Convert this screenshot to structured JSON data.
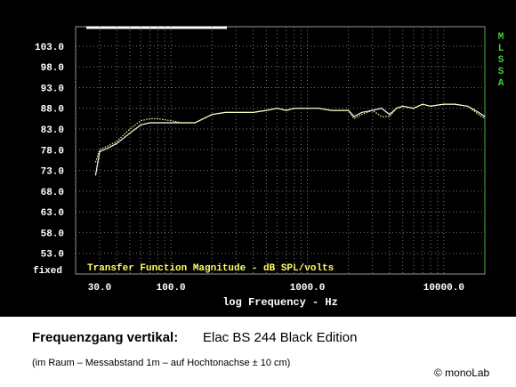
{
  "chart_data": {
    "type": "line",
    "x_label": "log Frequency - Hz",
    "y_note": "fixed",
    "plot_caption": "Transfer Function Magnitude - dB SPL/volts",
    "side_label": "MLSSA",
    "log_x": true,
    "grid": true,
    "xlim": [
      20,
      20000
    ],
    "ylim": [
      48,
      107.7
    ],
    "xticks": [
      {
        "value": 30,
        "label": "30.0"
      },
      {
        "value": 100,
        "label": "100.0"
      },
      {
        "value": 1000,
        "label": "1000.0"
      },
      {
        "value": 10000,
        "label": "10000.0"
      }
    ],
    "x_minor_ticks": [
      20,
      40,
      50,
      60,
      70,
      80,
      90,
      200,
      300,
      400,
      500,
      600,
      700,
      800,
      900,
      2000,
      3000,
      4000,
      5000,
      6000,
      7000,
      8000,
      9000,
      20000
    ],
    "yticks": [
      {
        "value": 53,
        "label": "53.0"
      },
      {
        "value": 58,
        "label": "58.0"
      },
      {
        "value": 63,
        "label": "63.0"
      },
      {
        "value": 68,
        "label": "68.0"
      },
      {
        "value": 73,
        "label": "73.0"
      },
      {
        "value": 78,
        "label": "78.0"
      },
      {
        "value": 83,
        "label": "83.0"
      },
      {
        "value": 88,
        "label": "88.0"
      },
      {
        "value": 93,
        "label": "93.0"
      },
      {
        "value": 98,
        "label": "98.0"
      },
      {
        "value": 103,
        "label": "103.0"
      }
    ],
    "x": [
      28,
      30,
      35,
      40,
      50,
      60,
      70,
      80,
      100,
      120,
      150,
      200,
      250,
      300,
      400,
      500,
      600,
      700,
      800,
      1000,
      1200,
      1500,
      2000,
      2200,
      2500,
      3000,
      3500,
      4000,
      4500,
      5000,
      6000,
      7000,
      8000,
      10000,
      12000,
      15000,
      18000,
      20000
    ],
    "series": [
      {
        "color": "#ffffff",
        "dash": false,
        "values": [
          71.8,
          77.5,
          78.5,
          79.5,
          82,
          84,
          84.5,
          84.5,
          84.5,
          84.5,
          84.5,
          86.5,
          87,
          87,
          87,
          87.5,
          88,
          87.5,
          88,
          88,
          88,
          87.5,
          87.5,
          86,
          87,
          87.5,
          88,
          86.5,
          88,
          88.5,
          88,
          89,
          88.5,
          89,
          89,
          88.5,
          87,
          86
        ]
      },
      {
        "color": "#ffff80",
        "dash": true,
        "values": [
          75,
          78,
          79,
          80,
          83,
          85,
          85.5,
          85.5,
          85,
          84.5,
          84.5,
          86.5,
          87,
          87,
          87,
          87.5,
          88,
          87.5,
          88,
          88,
          88,
          87.5,
          87.5,
          85.5,
          86.5,
          87.5,
          86,
          86,
          88,
          88.5,
          88,
          89,
          88.5,
          89,
          89,
          88.5,
          86.5,
          85.5
        ]
      }
    ]
  },
  "caption": {
    "title": "Frequenzgang vertikal:",
    "subject": "Elac BS 244 Black Edition",
    "note": "(im Raum – Messabstand 1m – auf Hochtonachse ± 10 cm)",
    "copyright": "© monoLab"
  }
}
